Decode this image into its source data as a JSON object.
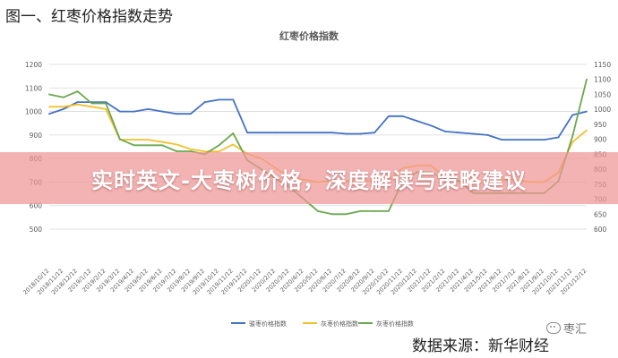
{
  "figure_caption": "图一、红枣价格指数走势",
  "banner_text": "实时英文-大枣树价格，深度解读与策略建议",
  "source_text": "数据来源：新华财经",
  "watermark_text": "枣汇",
  "watermark_icon": "wechat-icon",
  "chart_data": {
    "type": "line",
    "title": "红枣价格指数",
    "xlabel": "",
    "ylabel": "",
    "ylim": [
      500,
      1200
    ],
    "y2lim": [
      600,
      1150
    ],
    "yticks": [
      500,
      600,
      700,
      800,
      900,
      1000,
      1100,
      1200
    ],
    "y2ticks": [
      600,
      650,
      700,
      750,
      800,
      850,
      900,
      950,
      1000,
      1050,
      1100,
      1150
    ],
    "legend_position": "bottom",
    "grid": true,
    "colors": {
      "series1": "#4472c4",
      "series2": "#f2c12e",
      "series3": "#6aa84f"
    },
    "categories": [
      "2018/10/12",
      "2018/11/12",
      "2018/12/12",
      "2019/1/12",
      "2019/2/12",
      "2019/3/12",
      "2019/4/12",
      "2019/5/12",
      "2019/6/12",
      "2019/7/12",
      "2019/8/12",
      "2019/9/12",
      "2019/10/12",
      "2019/11/12",
      "2019/12/12",
      "2020/1/12",
      "2020/2/12",
      "2020/3/12",
      "2020/4/12",
      "2020/5/12",
      "2020/6/12",
      "2020/7/12",
      "2020/8/12",
      "2020/9/12",
      "2020/10/12",
      "2020/11/12",
      "2020/12/12",
      "2021/1/12",
      "2021/2/12",
      "2021/3/12",
      "2021/4/12",
      "2021/5/12",
      "2021/6/12",
      "2021/7/12",
      "2021/8/12",
      "2021/9/12",
      "2021/10/12",
      "2021/11/12",
      "2021/12/12"
    ],
    "series": [
      {
        "name": "骏枣价格指数",
        "axis": "left",
        "values": [
          990,
          1010,
          1040,
          1040,
          1040,
          1000,
          1000,
          1010,
          1000,
          990,
          990,
          1040,
          1050,
          1050,
          910,
          910,
          910,
          910,
          910,
          910,
          910,
          905,
          905,
          910,
          980,
          980,
          960,
          940,
          915,
          910,
          905,
          900,
          880,
          880,
          880,
          880,
          890,
          985,
          1000
        ]
      },
      {
        "name": "灰枣价格指数",
        "axis": "left",
        "values": [
          1020,
          1020,
          1030,
          1020,
          1010,
          880,
          880,
          880,
          870,
          860,
          840,
          830,
          830,
          860,
          820,
          800,
          760,
          720,
          710,
          700,
          705,
          705,
          705,
          705,
          705,
          760,
          770,
          770,
          720,
          700,
          700,
          700,
          710,
          710,
          700,
          700,
          740,
          870,
          920
        ]
      },
      {
        "name": "灰枣价格指数",
        "axis": "right",
        "values": [
          1050,
          1040,
          1060,
          1020,
          1020,
          900,
          880,
          880,
          880,
          860,
          860,
          850,
          880,
          920,
          830,
          800,
          770,
          740,
          700,
          660,
          650,
          650,
          660,
          660,
          660,
          760,
          790,
          790,
          770,
          760,
          720,
          720,
          720,
          720,
          720,
          720,
          760,
          910,
          1100
        ]
      }
    ]
  }
}
